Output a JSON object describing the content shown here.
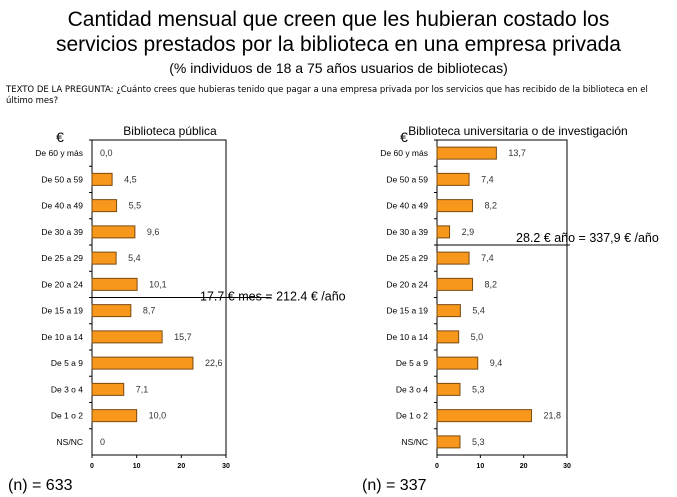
{
  "title_line1": "Cantidad mensual que creen que les hubieran costado los",
  "title_line2": "servicios prestados por la biblioteca en una empresa privada",
  "subtitle": "(% individuos de 18 a 75 años usuarios de bibliotecas)",
  "question": "TEXTO DE LA PREGUNTA: ¿Cuánto crees que hubieras tenido que pagar a una empresa privada por los servicios que has recibido de la biblioteca en el último mes?",
  "colors": {
    "bar": "#F7981D",
    "bar_border": "#7A4A10"
  },
  "chart_data": [
    {
      "type": "bar",
      "orientation": "horizontal",
      "title": "Biblioteca pública",
      "unit_label": "€",
      "categories": [
        "De 60 y más",
        "De 50 a 59",
        "De 40 a 49",
        "De 30 a 39",
        "De 25 a 29",
        "De 20 a 24",
        "De 15 a 19",
        "De 10 a 14",
        "De 5 a 9",
        "De 3 o 4",
        "De 1 o 2",
        "NS/NC"
      ],
      "values": [
        0.0,
        4.5,
        5.5,
        9.6,
        5.4,
        10.1,
        8.7,
        15.7,
        22.6,
        7.1,
        10.0,
        0
      ],
      "labels": [
        "0,0",
        "4,5",
        "5,5",
        "9,6",
        "5,4",
        "10,1",
        "8,7",
        "15,7",
        "22,6",
        "7,1",
        "10,0",
        "0"
      ],
      "xlim": [
        0,
        30
      ],
      "xticks": [
        "0",
        "10",
        "20",
        "30"
      ],
      "annotation": "17.7 € mes = 212.4 € /año",
      "annotation_after_index": 5,
      "n_label": "(n) = 633"
    },
    {
      "type": "bar",
      "orientation": "horizontal",
      "title": "Biblioteca universitaria o de investigación",
      "unit_label": "€",
      "categories": [
        "De 60 y más",
        "De 50 a 59",
        "De 40 a 49",
        "De 30 a 39",
        "De 25 a 29",
        "De 20 a 24",
        "De 15 a 19",
        "De 10 a 14",
        "De 5 a 9",
        "De 3 o 4",
        "De 1 o 2",
        "NS/NC"
      ],
      "values": [
        13.7,
        7.4,
        8.2,
        2.9,
        7.4,
        8.2,
        5.4,
        5.0,
        9.4,
        5.3,
        21.8,
        5.3
      ],
      "labels": [
        "13,7",
        "7,4",
        "8,2",
        "2,9",
        "7,4",
        "8,2",
        "5,4",
        "5,0",
        "9,4",
        "5,3",
        "21,8",
        "5,3"
      ],
      "xlim": [
        0,
        30
      ],
      "xticks": [
        "0",
        "10",
        "20",
        "30"
      ],
      "annotation": "28.2 € año = 337,9 € /año",
      "annotation_after_index": 3,
      "n_label": "(n) = 337"
    }
  ]
}
